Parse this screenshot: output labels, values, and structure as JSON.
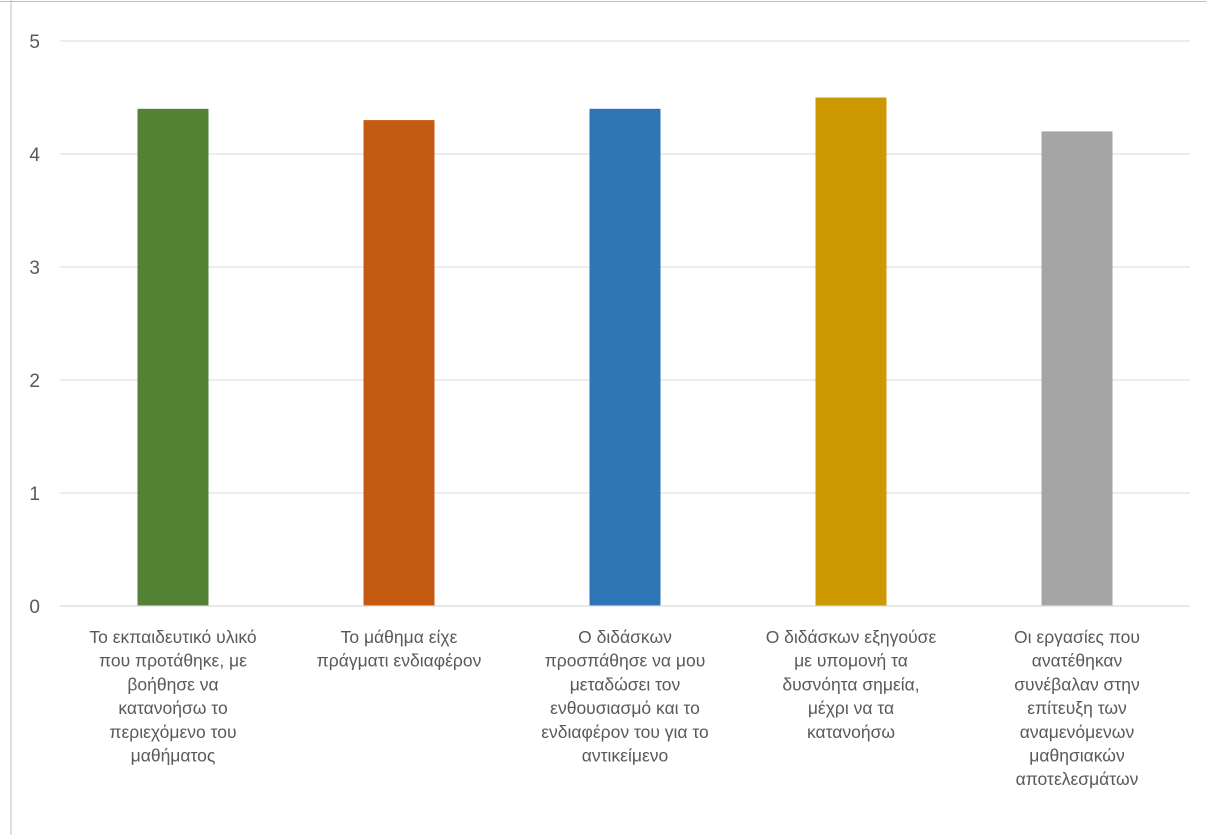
{
  "chart_data": {
    "type": "bar",
    "categories": [
      "Το εκπαιδευτικό υλικό που προτάθηκε, με βοήθησε να κατανοήσω το περιεχόμενο του μαθήματος",
      "Το μάθημα είχε πράγματι ενδιαφέρον",
      "Ο διδάσκων προσπάθησε να μου μεταδώσει τον ενθουσιασμό και το ενδιαφέρον του για το αντικείμενο",
      "Ο διδάσκων εξηγούσε με υπομονή τα δυσνόητα σημεία, μέχρι να τα κατανοήσω",
      "Οι εργασίες που ανατέθηκαν συνέβαλαν στην επίτευξη των αναμενόμενων μαθησιακών αποτελεσμάτων"
    ],
    "category_lines": [
      [
        "Το εκπαιδευτικό υλικό",
        "που προτάθηκε, με",
        "βοήθησε να",
        "κατανοήσω το",
        "περιεχόμενο του",
        "μαθήματος"
      ],
      [
        "Το μάθημα είχε",
        "πράγματι ενδιαφέρον"
      ],
      [
        "Ο διδάσκων",
        "προσπάθησε να μου",
        "μεταδώσει τον",
        "ενθουσιασμό και το",
        "ενδιαφέρον του για το",
        "αντικείμενο"
      ],
      [
        "Ο διδάσκων εξηγούσε",
        "με υπομονή τα",
        "δυσνόητα σημεία,",
        "μέχρι να τα",
        "κατανοήσω"
      ],
      [
        "Οι εργασίες που",
        "ανατέθηκαν",
        "συνέβαλαν στην",
        "επίτευξη των",
        "αναμενόμενων",
        "μαθησιακών",
        "αποτελεσμάτων"
      ]
    ],
    "values": [
      4.4,
      4.3,
      4.4,
      4.5,
      4.2
    ],
    "colors": [
      "#548235",
      "#c55a11",
      "#2e75b6",
      "#cc9900",
      "#a5a5a5"
    ],
    "ylim": [
      0,
      5
    ],
    "yticks": [
      0,
      1,
      2,
      3,
      4,
      5
    ],
    "grid": true,
    "title": "",
    "xlabel": "",
    "ylabel": ""
  }
}
